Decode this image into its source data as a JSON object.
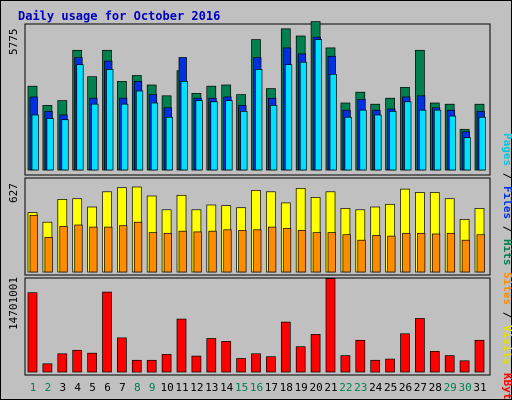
{
  "chart_data": [
    {
      "type": "bar",
      "title": "Daily usage for October 2016",
      "categories": [
        "1",
        "2",
        "3",
        "4",
        "5",
        "6",
        "7",
        "8",
        "9",
        "10",
        "11",
        "12",
        "13",
        "14",
        "15",
        "16",
        "17",
        "18",
        "19",
        "20",
        "21",
        "22",
        "23",
        "24",
        "25",
        "26",
        "27",
        "28",
        "29",
        "30",
        "31"
      ],
      "weekend_days": [
        "1",
        "2",
        "8",
        "9",
        "15",
        "16",
        "22",
        "23",
        "29",
        "30"
      ],
      "y_tick": "5775",
      "ylim": [
        0,
        6100
      ],
      "right_label": [
        "Pages",
        "Files",
        "Hits"
      ],
      "series": [
        {
          "name": "Hits",
          "color": "#007f4f",
          "values": [
            3500,
            2700,
            2900,
            5000,
            3900,
            5000,
            3700,
            3950,
            3550,
            3100,
            4150,
            3200,
            3500,
            3550,
            3150,
            5450,
            3400,
            5900,
            5600,
            6200,
            5100,
            2800,
            3250,
            2750,
            3000,
            3450,
            5000,
            2800,
            2750,
            1700,
            2750
          ]
        },
        {
          "name": "Files",
          "color": "#0030e0",
          "values": [
            3050,
            2450,
            2300,
            4700,
            3000,
            4550,
            3000,
            3700,
            3150,
            2600,
            4700,
            3000,
            3000,
            3050,
            2700,
            4700,
            3000,
            5100,
            4850,
            5550,
            4750,
            2500,
            2950,
            2500,
            2550,
            3050,
            3100,
            2600,
            2500,
            1600,
            2450
          ]
        },
        {
          "name": "Pages",
          "color": "#00e0ff",
          "values": [
            2300,
            2150,
            2100,
            4400,
            2750,
            4200,
            2750,
            3300,
            2800,
            2200,
            3700,
            2900,
            2850,
            2900,
            2450,
            4200,
            2700,
            4400,
            4500,
            5450,
            4000,
            2200,
            2500,
            2300,
            2450,
            2850,
            2500,
            2500,
            2250,
            1350,
            2200
          ]
        }
      ]
    },
    {
      "type": "bar",
      "y_tick": "627",
      "ylim": [
        0,
        680
      ],
      "right_label": [
        "Sites",
        "Visits"
      ],
      "series": [
        {
          "name": "Visits",
          "color": "#ffff00",
          "values": [
            430,
            360,
            525,
            530,
            470,
            580,
            610,
            615,
            550,
            450,
            555,
            450,
            485,
            480,
            465,
            590,
            580,
            500,
            605,
            540,
            580,
            460,
            450,
            470,
            490,
            600,
            575,
            575,
            530,
            380,
            460
          ]
        },
        {
          "name": "Sites",
          "color": "#ff8c00",
          "values": [
            410,
            250,
            330,
            340,
            325,
            325,
            335,
            360,
            285,
            280,
            295,
            290,
            295,
            305,
            300,
            305,
            325,
            315,
            300,
            285,
            285,
            270,
            230,
            265,
            260,
            280,
            280,
            275,
            280,
            230,
            270
          ]
        }
      ]
    },
    {
      "type": "bar",
      "y_tick": "14701001",
      "ylim": [
        0,
        16000000
      ],
      "right_label": [
        "KBytes"
      ],
      "series": [
        {
          "name": "KBytes",
          "color": "#ff0000",
          "values": [
            13500000,
            1400000,
            3100000,
            3700000,
            3200000,
            13600000,
            5800000,
            2000000,
            2000000,
            3000000,
            9000000,
            2700000,
            5700000,
            5200000,
            2300000,
            3100000,
            2600000,
            8500000,
            4300000,
            6400000,
            15900000,
            2800000,
            5400000,
            2000000,
            2200000,
            6500000,
            9100000,
            3500000,
            2800000,
            1900000,
            5400000
          ]
        }
      ]
    }
  ]
}
